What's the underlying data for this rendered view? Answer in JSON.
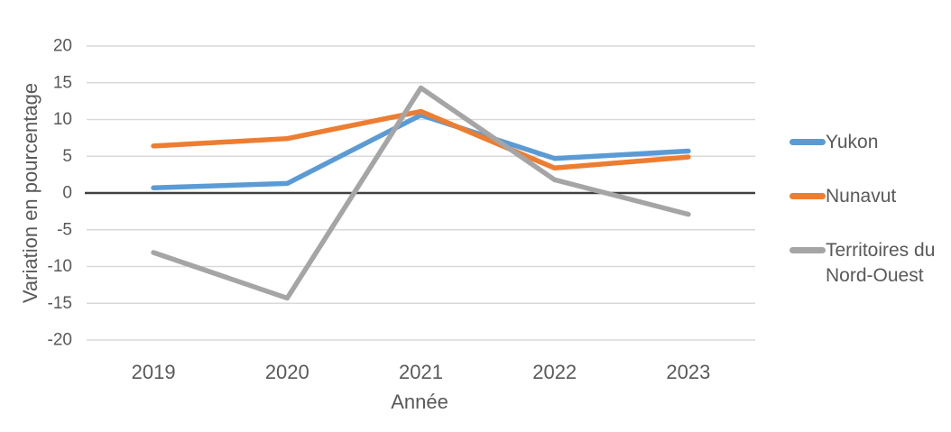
{
  "chart_data": {
    "type": "line",
    "title": "",
    "xlabel": "Année",
    "ylabel": "Variation en pourcentage",
    "categories": [
      "2019",
      "2020",
      "2021",
      "2022",
      "2023"
    ],
    "series": [
      {
        "name": "Yukon",
        "color": "#5B9BD5",
        "values": [
          0.7,
          1.3,
          10.6,
          4.7,
          5.7
        ]
      },
      {
        "name": "Nunavut",
        "color": "#ED7D31",
        "values": [
          6.4,
          7.4,
          11.1,
          3.4,
          4.9
        ]
      },
      {
        "name": "Territoires du Nord-Ouest",
        "color": "#A5A5A5",
        "values": [
          -8.1,
          -14.3,
          14.3,
          1.8,
          -2.9
        ]
      }
    ],
    "ylim": [
      -20,
      20
    ],
    "yticks": [
      20,
      15,
      10,
      5,
      0,
      -5,
      -10,
      -15,
      -20
    ],
    "grid": "horizontal",
    "gridline_color": "#D9D9D9",
    "zero_line_color": "#404040",
    "axis_text_color": "#595959",
    "legend_position": "right"
  }
}
